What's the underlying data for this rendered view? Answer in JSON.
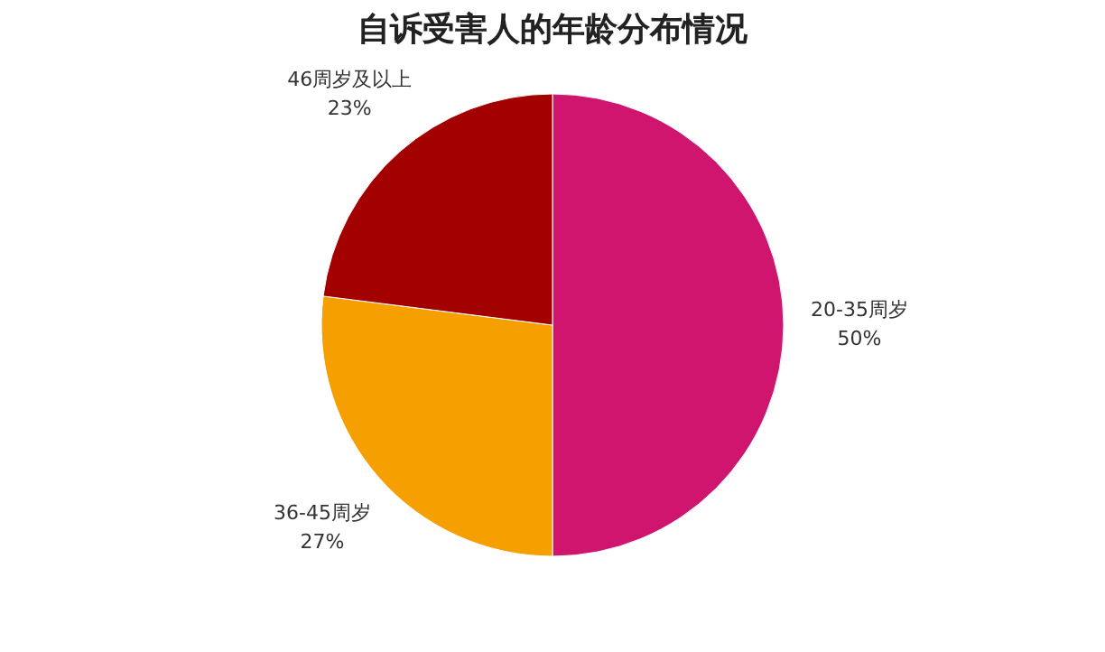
{
  "chart_data": {
    "type": "pie",
    "title": "自诉受害人的年龄分布情况",
    "categories": [
      "20-35周岁",
      "36-45周岁",
      "46周岁及以上"
    ],
    "values": [
      50,
      27,
      23
    ],
    "value_labels": [
      "50%",
      "27%",
      "23%"
    ],
    "colors": [
      "#d0156f",
      "#f5a000",
      "#a30000"
    ],
    "legend": false
  }
}
